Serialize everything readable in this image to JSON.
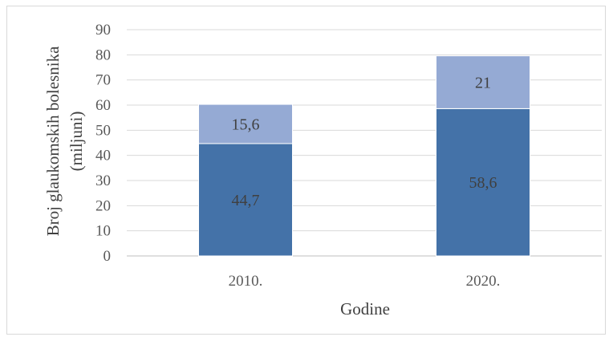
{
  "chart_data": {
    "type": "bar",
    "stacked": true,
    "categories": [
      "2010.",
      "2020."
    ],
    "series": [
      {
        "values": [
          44.7,
          58.6
        ],
        "labels": [
          "44,7",
          "58,6"
        ],
        "color": "#4472a8"
      },
      {
        "values": [
          15.6,
          21
        ],
        "labels": [
          "15,6",
          "21"
        ],
        "color": "#95aad4"
      }
    ],
    "xlabel": "Godine",
    "ylabel_line1": "Broj glaukomskih bolesnika",
    "ylabel_line2": "(miljuni)",
    "ylim": [
      0,
      90
    ],
    "yticks": [
      0,
      10,
      20,
      30,
      40,
      50,
      60,
      70,
      80,
      90
    ],
    "grid": true,
    "legend": "none"
  }
}
